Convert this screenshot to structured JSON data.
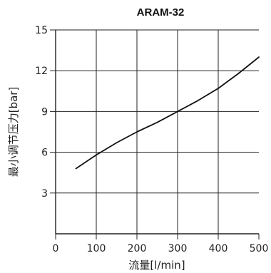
{
  "chart_data": {
    "type": "line",
    "title": "ARAM-32",
    "xlabel": "流量[l/min]",
    "ylabel": "最小调节压力[bar]",
    "xlim": [
      0,
      500
    ],
    "ylim": [
      0,
      15
    ],
    "xticks": [
      0,
      100,
      200,
      300,
      400,
      500
    ],
    "yticks": [
      3,
      6,
      9,
      12,
      15
    ],
    "xtick_labels": [
      "0",
      "100",
      "200",
      "300",
      "400",
      "500"
    ],
    "ytick_labels": [
      "3",
      "6",
      "9",
      "12",
      "15"
    ],
    "grid": true,
    "series": [
      {
        "x": [
          50,
          100,
          150,
          200,
          250,
          300,
          350,
          400,
          450,
          500
        ],
        "y": [
          4.8,
          5.8,
          6.7,
          7.5,
          8.2,
          9.0,
          9.8,
          10.7,
          11.8,
          13.0
        ]
      }
    ],
    "colors": {
      "line": "#111111",
      "grid": "#222222",
      "axis": "#222222"
    }
  }
}
